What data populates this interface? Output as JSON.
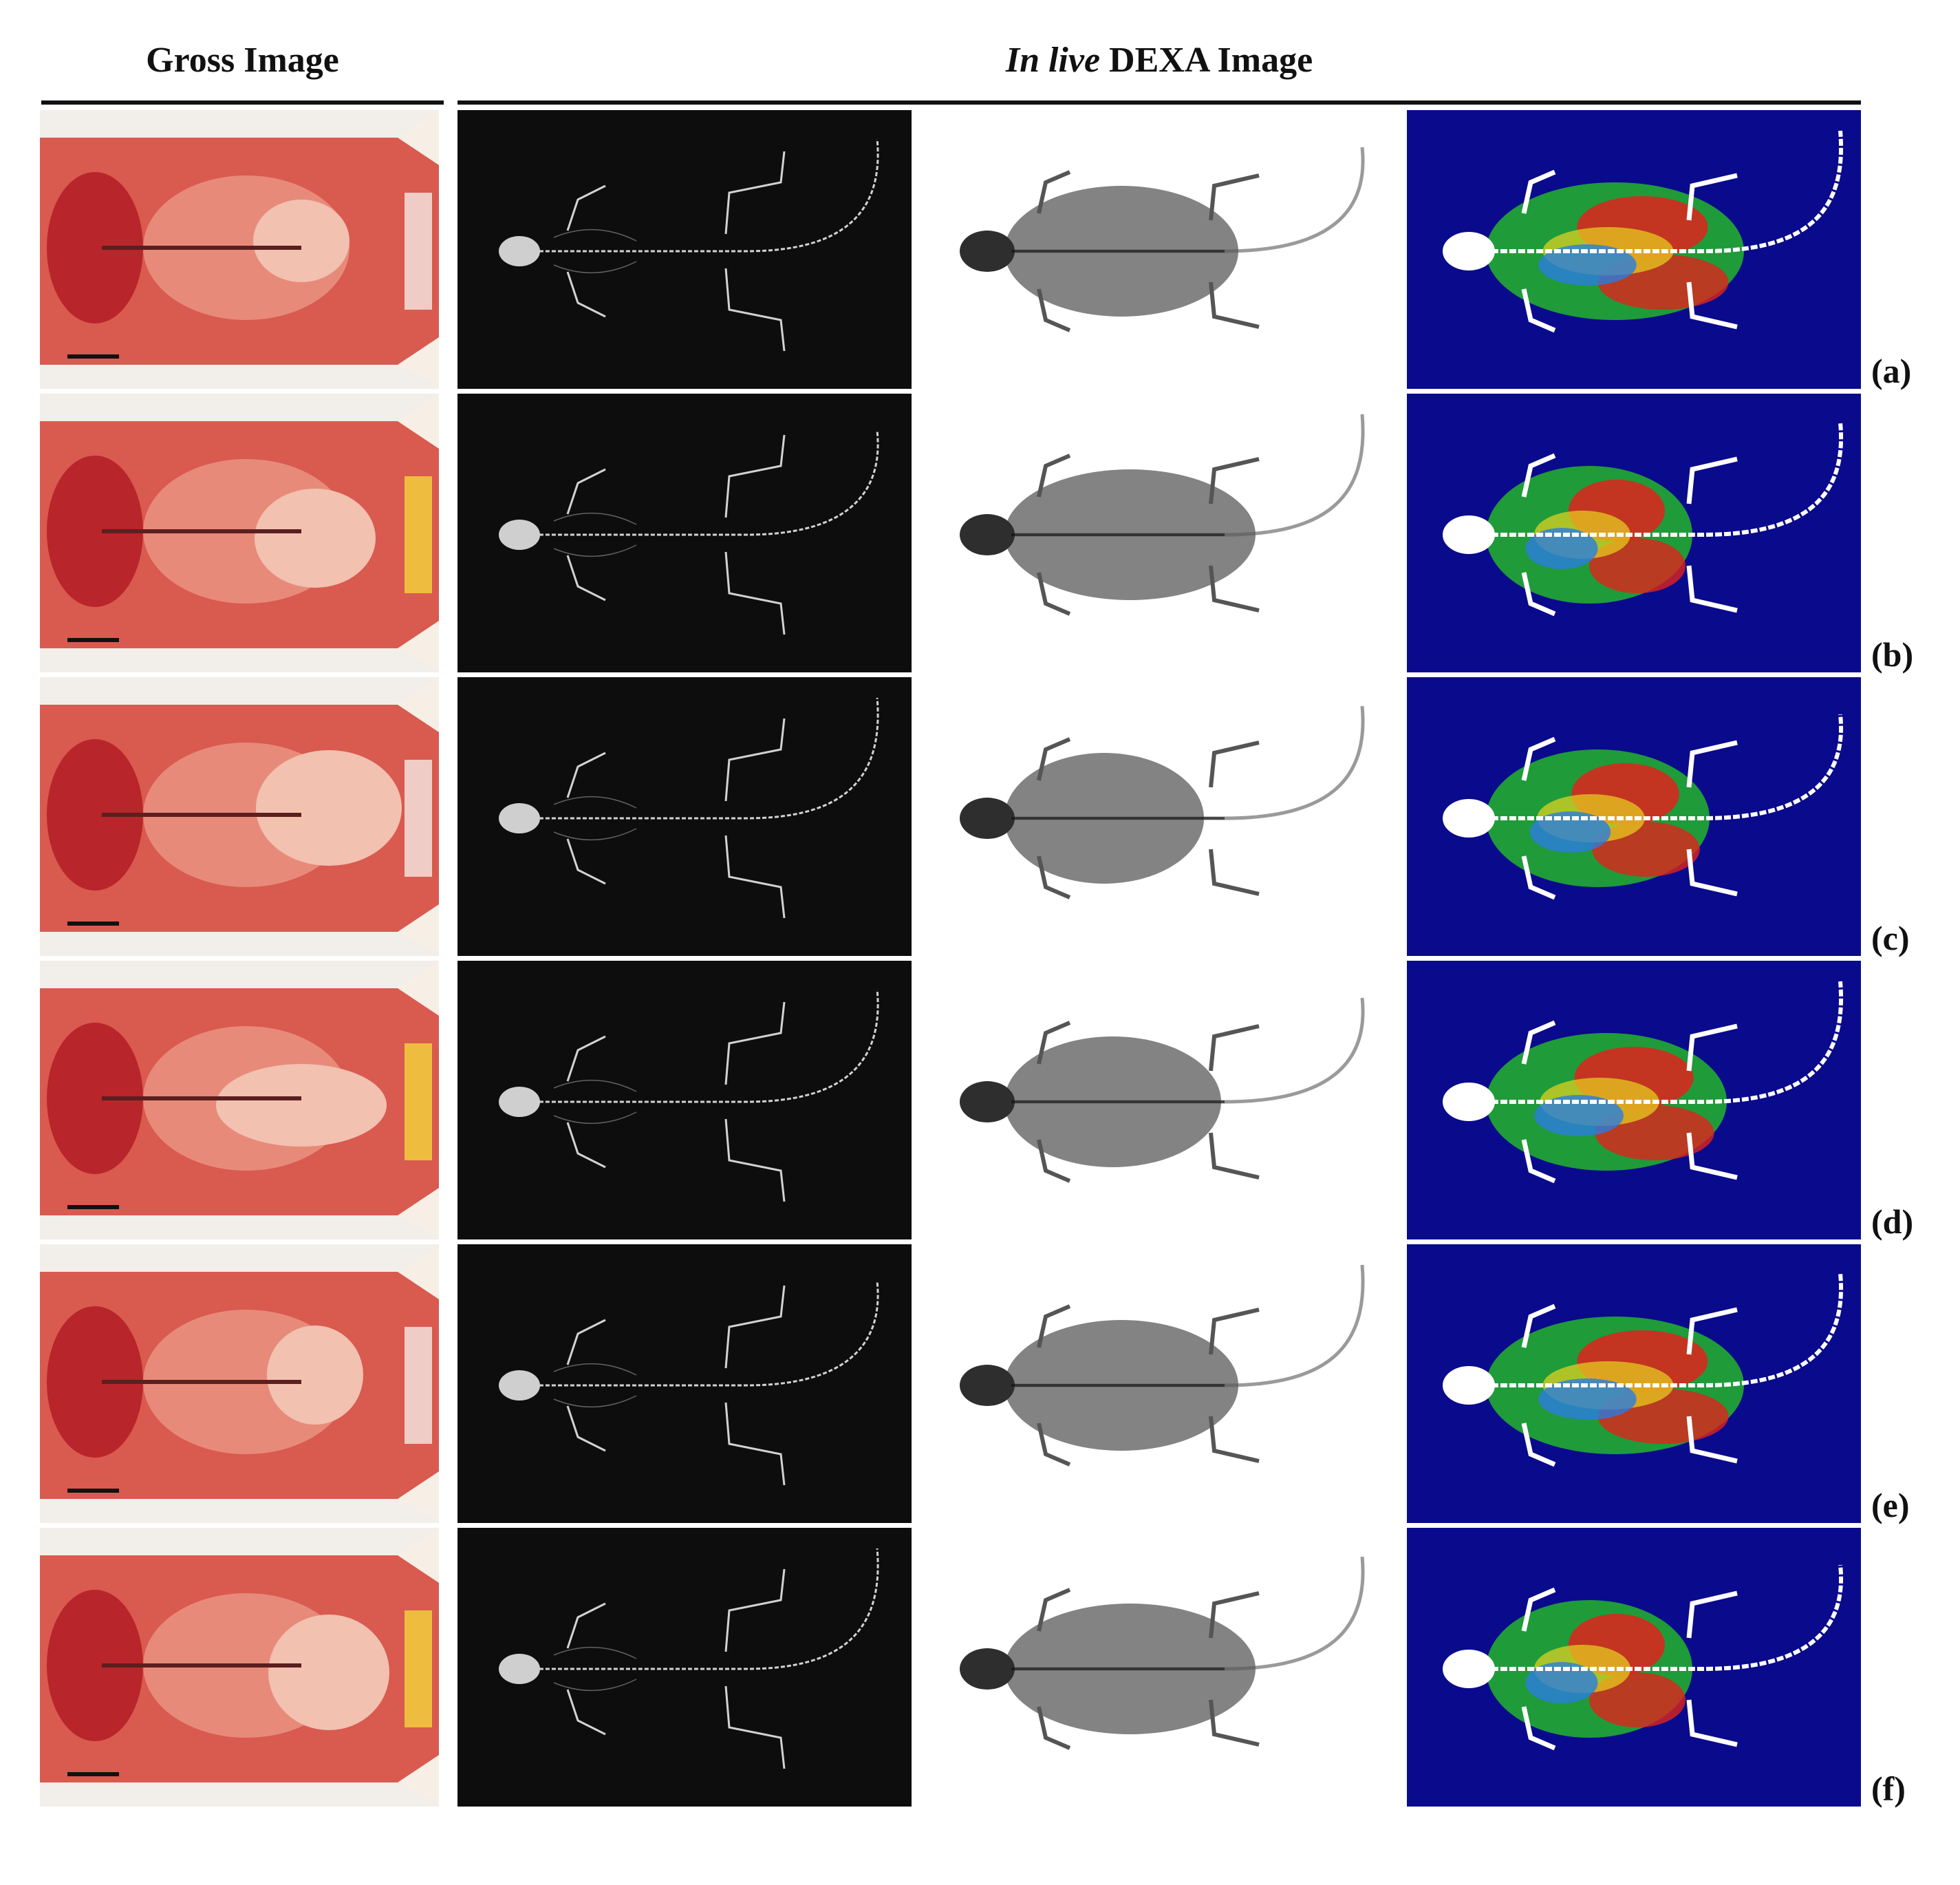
{
  "header": {
    "gross_title": "Gross Image",
    "dexa_title_italic": "In live",
    "dexa_title_rest": " DEXA Image"
  },
  "panel_kinds": [
    "gross-photo",
    "dexa-bone",
    "dexa-xray",
    "dexa-colormap"
  ],
  "rows": [
    {
      "label": "(a)"
    },
    {
      "label": "(b)"
    },
    {
      "label": "(c)"
    },
    {
      "label": "(d)"
    },
    {
      "label": "(e)"
    },
    {
      "label": "(f)"
    }
  ],
  "colors": {
    "bone_bg": "#0d0d0d",
    "xray_bg": "#ffffff",
    "map_bg": "#0a0a8c",
    "gross_bg": "#f2eeea"
  }
}
